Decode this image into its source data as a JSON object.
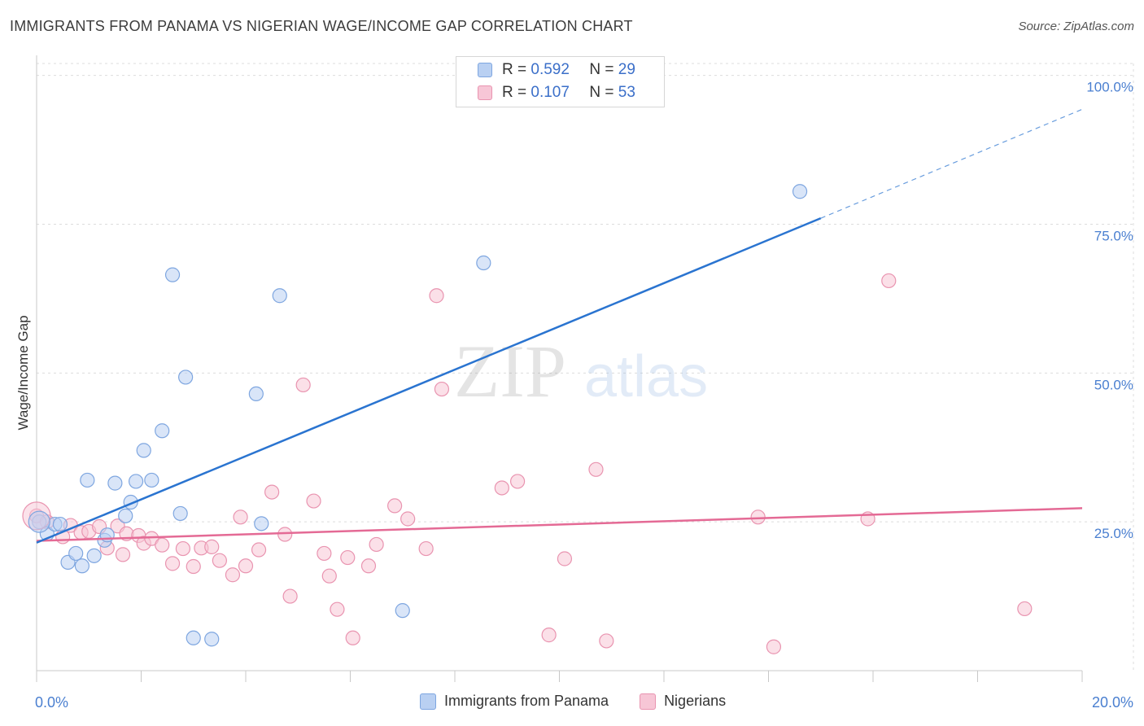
{
  "title": "IMMIGRANTS FROM PANAMA VS NIGERIAN WAGE/INCOME GAP CORRELATION CHART",
  "source": "Source: ZipAtlas.com",
  "watermark": {
    "zip": "ZIP",
    "atlas": "atlas"
  },
  "legend": {
    "series1": {
      "r_label": "R =",
      "r_value": "0.592",
      "n_label": "N =",
      "n_value": "29"
    },
    "series2": {
      "r_label": "R =",
      "r_value": "0.107",
      "n_label": "N =",
      "n_value": "53"
    }
  },
  "bottom_legend": {
    "series1": "Immigrants from Panama",
    "series2": "Nigerians"
  },
  "colors": {
    "blue_fill": "#b9d0f2",
    "blue_stroke": "#7ea6e0",
    "blue_line": "#2a74d0",
    "pink_fill": "#f7c6d6",
    "pink_stroke": "#e994b0",
    "pink_line": "#e46a95",
    "tick_label": "#4a7fd0",
    "grid": "#dcdcdc"
  },
  "chart_data": {
    "type": "scatter",
    "title": "IMMIGRANTS FROM PANAMA VS NIGERIAN WAGE/INCOME GAP CORRELATION CHART",
    "xlabel": "",
    "ylabel": "Wage/Income Gap",
    "xlim": [
      0,
      20
    ],
    "ylim": [
      0,
      102
    ],
    "x_tick_labels": [
      "0.0%",
      "20.0%"
    ],
    "y_ticks": [
      25,
      50,
      75,
      100
    ],
    "y_tick_labels": [
      "25.0%",
      "50.0%",
      "75.0%",
      "100.0%"
    ],
    "series": [
      {
        "name": "Immigrants from Panama",
        "color": "blue",
        "points": [
          [
            0.05,
            25.0
          ],
          [
            0.2,
            23.0
          ],
          [
            0.35,
            24.6
          ],
          [
            0.45,
            24.6
          ],
          [
            0.6,
            18.2
          ],
          [
            0.75,
            19.7
          ],
          [
            0.87,
            17.6
          ],
          [
            0.97,
            32.0
          ],
          [
            1.1,
            19.3
          ],
          [
            1.3,
            21.9
          ],
          [
            1.35,
            22.8
          ],
          [
            1.5,
            31.5
          ],
          [
            1.7,
            26.0
          ],
          [
            1.8,
            28.3
          ],
          [
            1.9,
            31.8
          ],
          [
            2.05,
            37.0
          ],
          [
            2.2,
            32.0
          ],
          [
            2.4,
            40.3
          ],
          [
            2.6,
            66.5
          ],
          [
            2.75,
            26.4
          ],
          [
            2.85,
            49.3
          ],
          [
            3.0,
            5.5
          ],
          [
            3.35,
            5.3
          ],
          [
            4.2,
            46.5
          ],
          [
            4.3,
            24.7
          ],
          [
            4.65,
            63.0
          ],
          [
            7.0,
            10.1
          ],
          [
            8.55,
            68.5
          ],
          [
            14.6,
            80.5
          ]
        ],
        "fit": {
          "x0": 0.0,
          "y0": 21.5,
          "x1": 15.0,
          "y1": 76.0,
          "dash_to_x": 20.0,
          "dash_to_y": 94.3
        }
      },
      {
        "name": "Nigerians",
        "color": "pink",
        "points": [
          [
            0.0,
            26.0
          ],
          [
            0.2,
            25.0
          ],
          [
            0.5,
            22.5
          ],
          [
            0.65,
            24.4
          ],
          [
            0.85,
            23.2
          ],
          [
            1.0,
            23.4
          ],
          [
            1.2,
            24.2
          ],
          [
            1.35,
            20.6
          ],
          [
            1.55,
            24.3
          ],
          [
            1.65,
            19.5
          ],
          [
            1.72,
            23.0
          ],
          [
            1.95,
            22.7
          ],
          [
            2.05,
            21.4
          ],
          [
            2.2,
            22.2
          ],
          [
            2.4,
            21.1
          ],
          [
            2.6,
            18.0
          ],
          [
            2.8,
            20.5
          ],
          [
            3.0,
            17.5
          ],
          [
            3.15,
            20.6
          ],
          [
            3.35,
            20.8
          ],
          [
            3.5,
            18.5
          ],
          [
            3.75,
            16.1
          ],
          [
            3.9,
            25.8
          ],
          [
            4.0,
            17.6
          ],
          [
            4.25,
            20.3
          ],
          [
            4.5,
            30.0
          ],
          [
            4.75,
            22.9
          ],
          [
            4.85,
            12.5
          ],
          [
            5.1,
            48.0
          ],
          [
            5.3,
            28.5
          ],
          [
            5.5,
            19.7
          ],
          [
            5.6,
            15.9
          ],
          [
            5.75,
            10.3
          ],
          [
            5.95,
            19.0
          ],
          [
            6.05,
            5.5
          ],
          [
            6.35,
            17.6
          ],
          [
            6.5,
            21.2
          ],
          [
            6.85,
            27.7
          ],
          [
            7.1,
            25.5
          ],
          [
            7.45,
            20.5
          ],
          [
            7.65,
            63.0
          ],
          [
            7.75,
            47.3
          ],
          [
            8.9,
            30.7
          ],
          [
            9.2,
            31.8
          ],
          [
            9.8,
            6.0
          ],
          [
            10.1,
            18.8
          ],
          [
            10.7,
            33.8
          ],
          [
            10.9,
            5.0
          ],
          [
            13.8,
            25.8
          ],
          [
            14.1,
            4.0
          ],
          [
            15.9,
            25.5
          ],
          [
            16.3,
            65.5
          ],
          [
            18.9,
            10.4
          ]
        ],
        "fit": {
          "x0": 0.0,
          "y0": 21.8,
          "x1": 20.0,
          "y1": 27.3
        }
      }
    ]
  }
}
